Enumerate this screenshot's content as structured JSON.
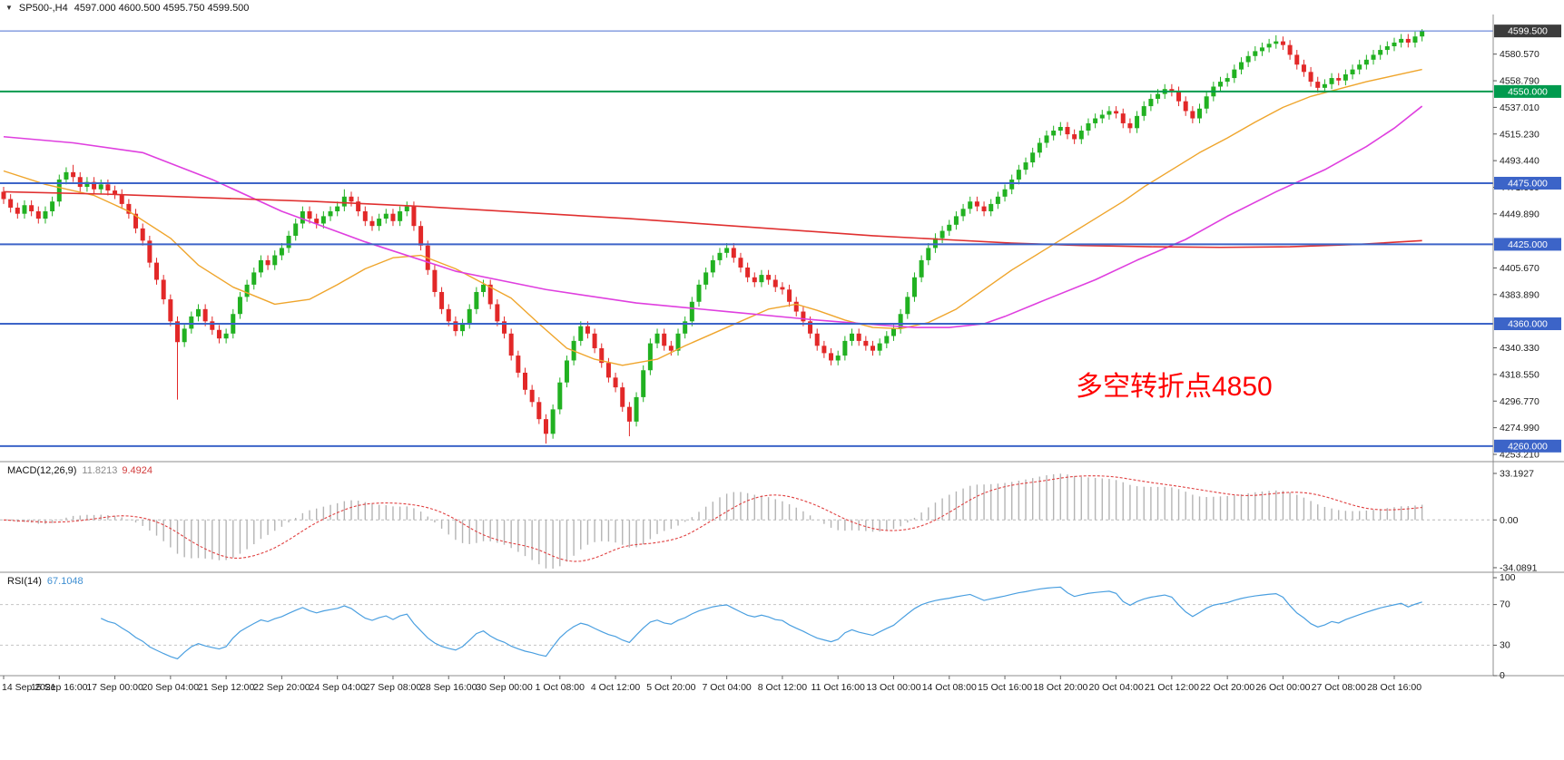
{
  "header": {
    "menu_icon": "dropdown-arrow",
    "symbol_period": "SP500-,H4",
    "ohlc": "4597.000 4600.500 4595.750 4599.500"
  },
  "annotation": {
    "text": "多空转折点4850",
    "color": "#ff0000"
  },
  "colors": {
    "up": "#21b121",
    "down": "#e22828",
    "separator": "#8c8c8c",
    "axis_text": "#1a1a1a",
    "background": "#ffffff"
  },
  "chart_data": {
    "type": "candlestick",
    "symbol": "SP500-",
    "timeframe": "H4",
    "price_axis": {
      "min": 4248,
      "max": 4610,
      "ticks": [
        "4580.570",
        "4558.790",
        "4537.010",
        "4515.230",
        "4493.440",
        "4471.660",
        "4449.890",
        "4405.670",
        "4383.890",
        "4340.330",
        "4318.550",
        "4296.770",
        "4274.990",
        "4253.210"
      ]
    },
    "time_axis": [
      "14 Sep 2021",
      "15 Sep 16:00",
      "17 Sep 00:00",
      "20 Sep 04:00",
      "21 Sep 12:00",
      "22 Sep 20:00",
      "24 Sep 04:00",
      "27 Sep 08:00",
      "28 Sep 16:00",
      "30 Sep 00:00",
      "1 Oct 08:00",
      "4 Oct 12:00",
      "5 Oct 20:00",
      "7 Oct 04:00",
      "8 Oct 12:00",
      "11 Oct 16:00",
      "13 Oct 00:00",
      "14 Oct 08:00",
      "15 Oct 16:00",
      "18 Oct 20:00",
      "20 Oct 04:00",
      "21 Oct 12:00",
      "22 Oct 20:00",
      "26 Oct 00:00",
      "27 Oct 08:00",
      "28 Oct 16:00"
    ],
    "candles": {
      "first_open": 4468,
      "wick": 4,
      "closes": [
        4462,
        4455,
        4450,
        4457,
        4452,
        4446,
        4452,
        4460,
        4478,
        4484,
        4480,
        4472,
        4476,
        4470,
        4474,
        4469,
        4466,
        4458,
        4450,
        4438,
        4428,
        4410,
        4396,
        4380,
        4362,
        4345,
        4356,
        4366,
        4372,
        4362,
        4355,
        4348,
        4352,
        4368,
        4382,
        4392,
        4402,
        4412,
        4408,
        4416,
        4422,
        4432,
        4442,
        4452,
        4446,
        4442,
        4448,
        4452,
        4456,
        4464,
        4460,
        4452,
        4444,
        4440,
        4446,
        4450,
        4444,
        4452,
        4456,
        4440,
        4424,
        4404,
        4386,
        4372,
        4362,
        4354,
        4360,
        4372,
        4386,
        4392,
        4376,
        4362,
        4352,
        4334,
        4320,
        4306,
        4296,
        4282,
        4270,
        4290,
        4312,
        4330,
        4346,
        4358,
        4352,
        4340,
        4328,
        4316,
        4308,
        4292,
        4280,
        4300,
        4322,
        4344,
        4352,
        4342,
        4338,
        4352,
        4362,
        4378,
        4392,
        4402,
        4412,
        4418,
        4422,
        4414,
        4406,
        4398,
        4394,
        4400,
        4396,
        4390,
        4388,
        4378,
        4370,
        4362,
        4352,
        4342,
        4336,
        4330,
        4334,
        4346,
        4352,
        4346,
        4342,
        4338,
        4344,
        4350,
        4356,
        4368,
        4382,
        4398,
        4412,
        4422,
        4430,
        4436,
        4441,
        4448,
        4454,
        4460,
        4456,
        4452,
        4458,
        4464,
        4470,
        4478,
        4486,
        4492,
        4500,
        4508,
        4514,
        4518,
        4521,
        4515,
        4511,
        4518,
        4524,
        4528,
        4531,
        4534,
        4532,
        4524,
        4520,
        4530,
        4538,
        4544,
        4548,
        4552,
        4550,
        4542,
        4534,
        4528,
        4536,
        4546,
        4554,
        4558,
        4561,
        4568,
        4574,
        4579,
        4583,
        4586,
        4589,
        4591,
        4588,
        4580,
        4572,
        4566,
        4558,
        4553,
        4556,
        4561,
        4559,
        4564,
        4568,
        4572,
        4576,
        4580,
        4584,
        4587,
        4590,
        4593,
        4590,
        4595,
        4599.5
      ],
      "overrides": {
        "10": {
          "high": 4490
        },
        "25": {
          "low": 4298
        },
        "49": {
          "high": 4470
        },
        "78": {
          "low": 4262
        },
        "90": {
          "low": 4268
        },
        "160": {
          "high": 4538
        },
        "183": {
          "high": 4596
        },
        "204": {
          "high": 4601
        }
      }
    },
    "moving_averages": [
      {
        "name": "ma-fast-orange",
        "color": "#efa52c",
        "width": 1.4,
        "points": [
          [
            0,
            4485
          ],
          [
            6,
            4474
          ],
          [
            13,
            4465
          ],
          [
            18,
            4452
          ],
          [
            24,
            4430
          ],
          [
            28,
            4408
          ],
          [
            33,
            4390
          ],
          [
            39,
            4376
          ],
          [
            44,
            4380
          ],
          [
            48,
            4392
          ],
          [
            52,
            4405
          ],
          [
            56,
            4414
          ],
          [
            60,
            4416
          ],
          [
            65,
            4405
          ],
          [
            70,
            4390
          ],
          [
            73,
            4381
          ],
          [
            77,
            4360
          ],
          [
            81,
            4340
          ],
          [
            85,
            4331
          ],
          [
            89,
            4326
          ],
          [
            94,
            4331
          ],
          [
            98,
            4342
          ],
          [
            102,
            4352
          ],
          [
            106,
            4362
          ],
          [
            110,
            4372
          ],
          [
            114,
            4376
          ],
          [
            117,
            4371
          ],
          [
            121,
            4363
          ],
          [
            125,
            4357
          ],
          [
            129,
            4356
          ],
          [
            133,
            4361
          ],
          [
            137,
            4372
          ],
          [
            141,
            4388
          ],
          [
            145,
            4404
          ],
          [
            149,
            4418
          ],
          [
            153,
            4432
          ],
          [
            157,
            4446
          ],
          [
            161,
            4460
          ],
          [
            164,
            4472
          ],
          [
            168,
            4486
          ],
          [
            172,
            4500
          ],
          [
            176,
            4512
          ],
          [
            180,
            4525
          ],
          [
            184,
            4537
          ],
          [
            188,
            4546
          ],
          [
            192,
            4552
          ],
          [
            196,
            4558
          ],
          [
            200,
            4563
          ],
          [
            204,
            4568
          ]
        ]
      },
      {
        "name": "ma-mid-magenta",
        "color": "#df3fdf",
        "width": 1.6,
        "points": [
          [
            0,
            4513
          ],
          [
            10,
            4508
          ],
          [
            20,
            4500
          ],
          [
            30,
            4478
          ],
          [
            40,
            4452
          ],
          [
            52,
            4427
          ],
          [
            65,
            4403
          ],
          [
            78,
            4388
          ],
          [
            91,
            4377
          ],
          [
            104,
            4370
          ],
          [
            117,
            4363
          ],
          [
            126,
            4359
          ],
          [
            131,
            4357
          ],
          [
            136,
            4357
          ],
          [
            141,
            4360
          ],
          [
            144,
            4366
          ],
          [
            150,
            4380
          ],
          [
            157,
            4396
          ],
          [
            163,
            4412
          ],
          [
            170,
            4429
          ],
          [
            176,
            4448
          ],
          [
            183,
            4468
          ],
          [
            190,
            4486
          ],
          [
            196,
            4505
          ],
          [
            200,
            4520
          ],
          [
            204,
            4538
          ]
        ]
      },
      {
        "name": "ma-slow-red",
        "color": "#e03030",
        "width": 1.6,
        "points": [
          [
            0,
            4468
          ],
          [
            15,
            4466
          ],
          [
            30,
            4463
          ],
          [
            45,
            4460
          ],
          [
            60,
            4456
          ],
          [
            75,
            4451
          ],
          [
            90,
            4446
          ],
          [
            105,
            4440
          ],
          [
            115,
            4436
          ],
          [
            125,
            4432
          ],
          [
            135,
            4429
          ],
          [
            145,
            4426
          ],
          [
            155,
            4424
          ],
          [
            165,
            4423
          ],
          [
            175,
            4422.5
          ],
          [
            185,
            4423
          ],
          [
            195,
            4425
          ],
          [
            204,
            4428
          ]
        ]
      }
    ],
    "horizontal_lines": [
      {
        "label": "4550.000",
        "price": 4550,
        "color": "#009a4e",
        "width": 2
      },
      {
        "label": "4475.000",
        "price": 4475,
        "color": "#3c64c8",
        "width": 2
      },
      {
        "label": "4425.000",
        "price": 4425,
        "color": "#3c64c8",
        "width": 2
      },
      {
        "label": "4360.000",
        "price": 4360,
        "color": "#3c64c8",
        "width": 2
      },
      {
        "label": "4260.000",
        "price": 4260,
        "color": "#3c64c8",
        "width": 2
      }
    ],
    "current_price": {
      "label": "4599.500",
      "price": 4599.5,
      "line_color": "#4a6ed0",
      "badge_bg": "#3c3c3c"
    },
    "macd": {
      "label": "MACD(12,26,9)",
      "fast": 12,
      "slow": 26,
      "signal": 9,
      "value_main": "11.8213",
      "value_signal": "9.4924",
      "axis_labels": [
        {
          "label": "33.1927",
          "value": 33.1927
        },
        {
          "label": "0.00",
          "value": 0
        },
        {
          "label": "-34.0891",
          "value": -34.0891
        }
      ],
      "histogram_color": "#b4b4b4",
      "signal_color": "#e04040"
    },
    "rsi": {
      "label": "RSI(14)",
      "period": 14,
      "value": "67.1048",
      "levels": [
        {
          "label": "100",
          "value": 100
        },
        {
          "label": "70",
          "value": 70
        },
        {
          "label": "30",
          "value": 30
        },
        {
          "label": "0",
          "value": 0
        }
      ],
      "dashed_levels": [
        70,
        30
      ],
      "line_color": "#4a9fe0"
    }
  }
}
